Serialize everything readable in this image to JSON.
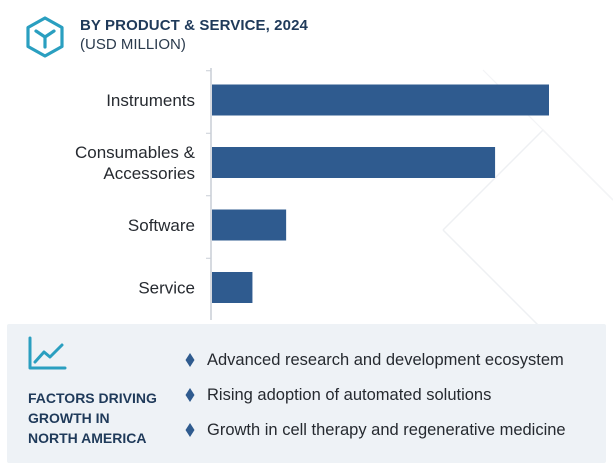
{
  "header": {
    "title": "BY PRODUCT & SERVICE, 2024",
    "subtitle": "(USD MILLION)",
    "logo_icon": "cube-outline-icon"
  },
  "chart_data": {
    "type": "bar",
    "orientation": "horizontal",
    "categories": [
      "Instruments",
      "Consumables & Accessories",
      "Software",
      "Service"
    ],
    "category_lines": [
      [
        "Instruments"
      ],
      [
        "Consumables &",
        "Accessories"
      ],
      [
        "Software"
      ],
      [
        "Service"
      ]
    ],
    "values": [
      100,
      84,
      22,
      12
    ],
    "bar_color": "#2f5b8f",
    "axis_color": "#c8ced6",
    "value_axis": "none",
    "grid": false,
    "legend": "none"
  },
  "factors_panel": {
    "icon": "line-trend-icon",
    "title_lines": [
      "FACTORS DRIVING",
      "GROWTH IN",
      "NORTH AMERICA"
    ],
    "bullet_icon": "diamond-bullet-icon",
    "items": [
      "Advanced research and development ecosystem",
      "Rising adoption of automated solutions",
      "Growth in cell therapy and regenerative medicine"
    ]
  },
  "colors": {
    "brand": "#2f5b8f",
    "accent_teal": "#2a9fc0",
    "title": "#1f3a5a",
    "panel_bg": "#eef2f6"
  }
}
